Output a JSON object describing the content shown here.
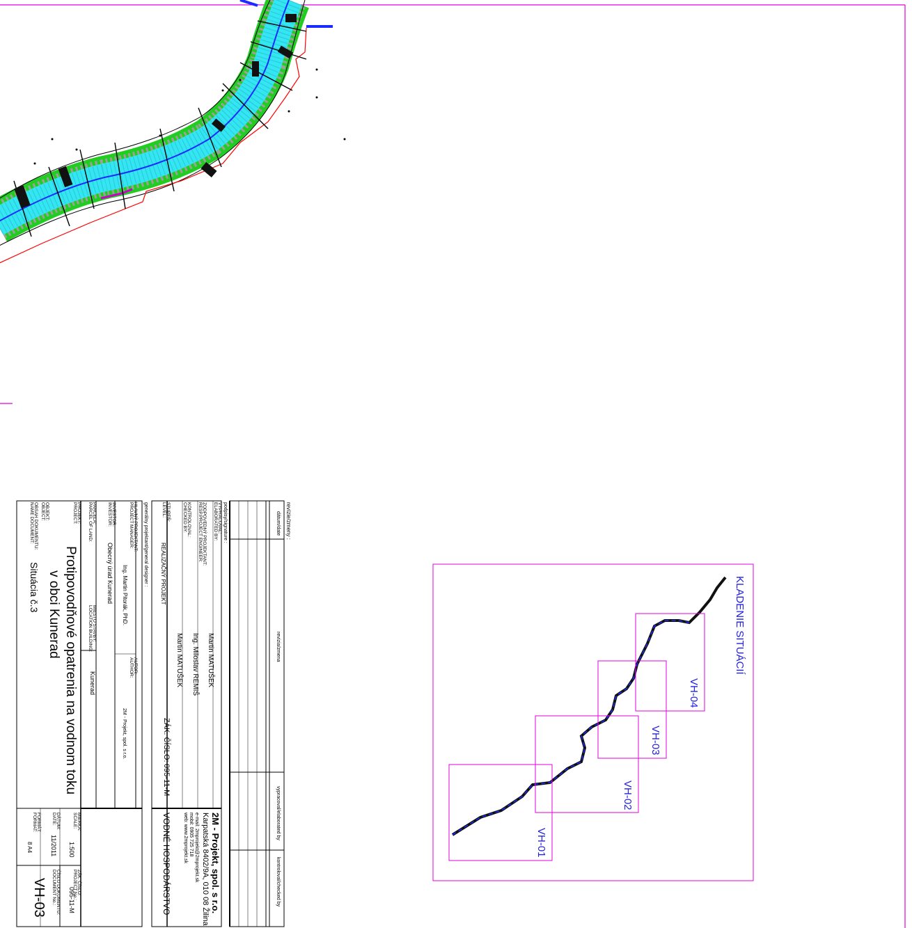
{
  "colors": {
    "frame": "#e000e0",
    "water": "#33e6f2",
    "bank": "#22cc22",
    "axis": "#1a2cff",
    "boundary": "#ff0000",
    "overview_label": "#2020e0"
  },
  "key_map": {
    "title": "KLADENIE SITUÁCIÍ",
    "sheets": [
      "VH-01",
      "VH-02",
      "VH-03",
      "VH-04"
    ]
  },
  "revisions": {
    "header": "revízie/zmeny :",
    "col_date": "dátum/date",
    "col_revision": "revízia/zmena",
    "col_prepared": "vypracoval/elaborated by",
    "col_checked": "kontroloval/checked by"
  },
  "title_block": {
    "podpisy_header": "podpisy/signature :",
    "vypracoval_label": "VYPRACOVAL:",
    "vypracoval_label_en": "ELABORATED BY:",
    "vypracoval_value": "Martin MATUŠEK",
    "zodp_label": "ZODPOVEDNÝ PROJEKTANT:",
    "zodp_label_en": "RESP.PROJECT ENGINEER:",
    "zodp_value": "Ing. Miloslav REMIŠ",
    "kontroloval_label": "KONTROLOVAL:",
    "kontroloval_label_en": "CHECKED BY:",
    "kontroloval_value": "Martin MATUŠEK",
    "stupen_label": "STUPEŇ:",
    "stupen_label_en": "LEVEL:",
    "stupen_value": "REALIZAČNÝ PROJEKT",
    "zak_cislo": "ZÁK. ČÍSLO:",
    "zak_cislo_value": "095-11-M",
    "company_name": "2M - Projekt, spol. s r.o.",
    "company_address": "Karpatská 8402/9A, 010 08  Žilina",
    "company_email": "e-mail: 2mprojekt@2mprojekt.sk",
    "company_mobil": "mobil: 0905 725 718",
    "company_web": "web: www.2mprojekt.sk",
    "discipline": "VODNÉ HOSPODÁRSTVO",
    "gen_projektant": "generálny projektant/general designer :",
    "hlavny_label": "HLAVNÝ PROJEKTANT:",
    "hlavny_label_en": "PROJECT MANAGER:",
    "hlavny_value": "Ing. Martin Pitorák, PhD.",
    "autor_label": "AUTOR:",
    "autor_label_en": "AUTHOR:",
    "autor_value": "2M - Projekt, spol. s r.o.",
    "investor_label": "INVESTOR:",
    "investor_label_en": "INVESTOR:",
    "investor_value": "Obecný úrad Kunerad",
    "parcela_label": "PARCELA:",
    "parcela_label_en": "PARCEL OF LAND:",
    "miesto_label": "MIESTO STAVBY:",
    "miesto_label_en": "LOCATION BUILDING:",
    "miesto_value": "Kunerad",
    "projekt_label": "PROJEKT:",
    "projekt_label_en": "PROJECT:",
    "projekt_line1": "Protipovodňové opatrenia na vodnom toku",
    "projekt_line2": "v obci Kunerad",
    "objekt_label": "OBJEKT:",
    "objekt_label_en": "OBJECT:",
    "obsah_label": "OBSAH DOKUMENTU:",
    "obsah_label_en": "NAME DOCUMENT:",
    "obsah_value": "Situácia č.3",
    "mierka_label": "MIERKA:",
    "mierka_label_en": "SCALE:",
    "mierka_value": "1:500",
    "datum_label": "DÁTUM:",
    "datum_label_en": "DATE:",
    "datum_value": "11/2011",
    "format_label": "FORMÁT:",
    "format_label_en": "FORMAT:",
    "format_value": "8 A4",
    "zak_label2": "ZÁK. ČÍSLO:",
    "zak_label2_en": "PROJECT No.:",
    "zak_value2": "095-11-M",
    "cislo_label": "ČÍSLO DOKUMENTU:",
    "cislo_label_en": "DOCUMENT No.:",
    "doc_number": "VH-03"
  }
}
